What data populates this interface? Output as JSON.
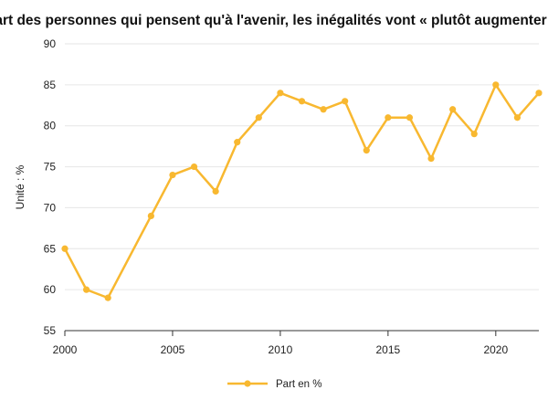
{
  "chart_data": {
    "type": "line",
    "title": "Part des personnes qui pensent qu'à l'avenir, les inégalités vont « plutôt augmenter »",
    "xlabel": "",
    "ylabel": "Unité : %",
    "xlim": [
      2000,
      2022
    ],
    "ylim": [
      55,
      90
    ],
    "x_ticks": [
      2000,
      2005,
      2010,
      2015,
      2020
    ],
    "y_ticks": [
      55,
      60,
      65,
      70,
      75,
      80,
      85,
      90
    ],
    "grid": "horizontal",
    "legend_position": "bottom",
    "colors": {
      "series": "#F8B830",
      "grid": "#E6E6E6",
      "axis": "#333333"
    },
    "series": [
      {
        "name": "Part en %",
        "x": [
          2000,
          2001,
          2002,
          2004,
          2005,
          2006,
          2007,
          2008,
          2009,
          2010,
          2011,
          2012,
          2013,
          2014,
          2015,
          2016,
          2017,
          2018,
          2019,
          2020,
          2021,
          2022
        ],
        "values": [
          65,
          60,
          59,
          69,
          74,
          75,
          72,
          78,
          81,
          84,
          83,
          82,
          83,
          77,
          81,
          81,
          76,
          82,
          79,
          85,
          81,
          84
        ]
      }
    ]
  }
}
